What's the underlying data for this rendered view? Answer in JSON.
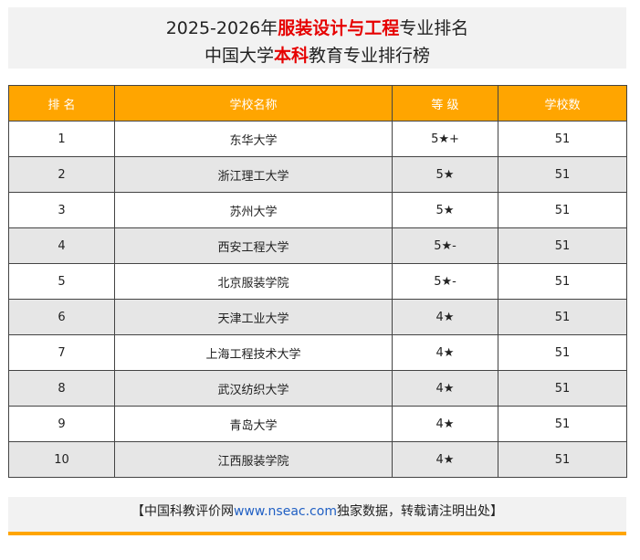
{
  "header": {
    "year_range": "2025-2026年",
    "major": "服装设计与工程",
    "title_suffix": "专业排名",
    "prefix": "中国大学",
    "edu_level": "本科",
    "subtitle_suffix": "教育专业排行榜"
  },
  "table": {
    "columns": [
      "排 名",
      "学校名称",
      "等 级",
      "学校数"
    ],
    "rows": [
      {
        "rank": "1",
        "school": "东华大学",
        "grade": "5★+",
        "count": "51"
      },
      {
        "rank": "2",
        "school": "浙江理工大学",
        "grade": "5★",
        "count": "51"
      },
      {
        "rank": "3",
        "school": "苏州大学",
        "grade": "5★",
        "count": "51"
      },
      {
        "rank": "4",
        "school": "西安工程大学",
        "grade": "5★-",
        "count": "51"
      },
      {
        "rank": "5",
        "school": "北京服装学院",
        "grade": "5★-",
        "count": "51"
      },
      {
        "rank": "6",
        "school": "天津工业大学",
        "grade": "4★",
        "count": "51"
      },
      {
        "rank": "7",
        "school": "上海工程技术大学",
        "grade": "4★",
        "count": "51"
      },
      {
        "rank": "8",
        "school": "武汉纺织大学",
        "grade": "4★",
        "count": "51"
      },
      {
        "rank": "9",
        "school": "青岛大学",
        "grade": "4★",
        "count": "51"
      },
      {
        "rank": "10",
        "school": "江西服装学院",
        "grade": "4★",
        "count": "51"
      }
    ]
  },
  "footer": {
    "left_bracket": "【中国科教评价网",
    "site": "www.nseac.com",
    "notice": "独家数据，转载请注明出处】"
  },
  "colors": {
    "accent": "#ffa500",
    "highlight": "#e60000",
    "link": "#2160c4",
    "row_alt": "#e6e6e6",
    "panel": "#f2f2f2"
  }
}
